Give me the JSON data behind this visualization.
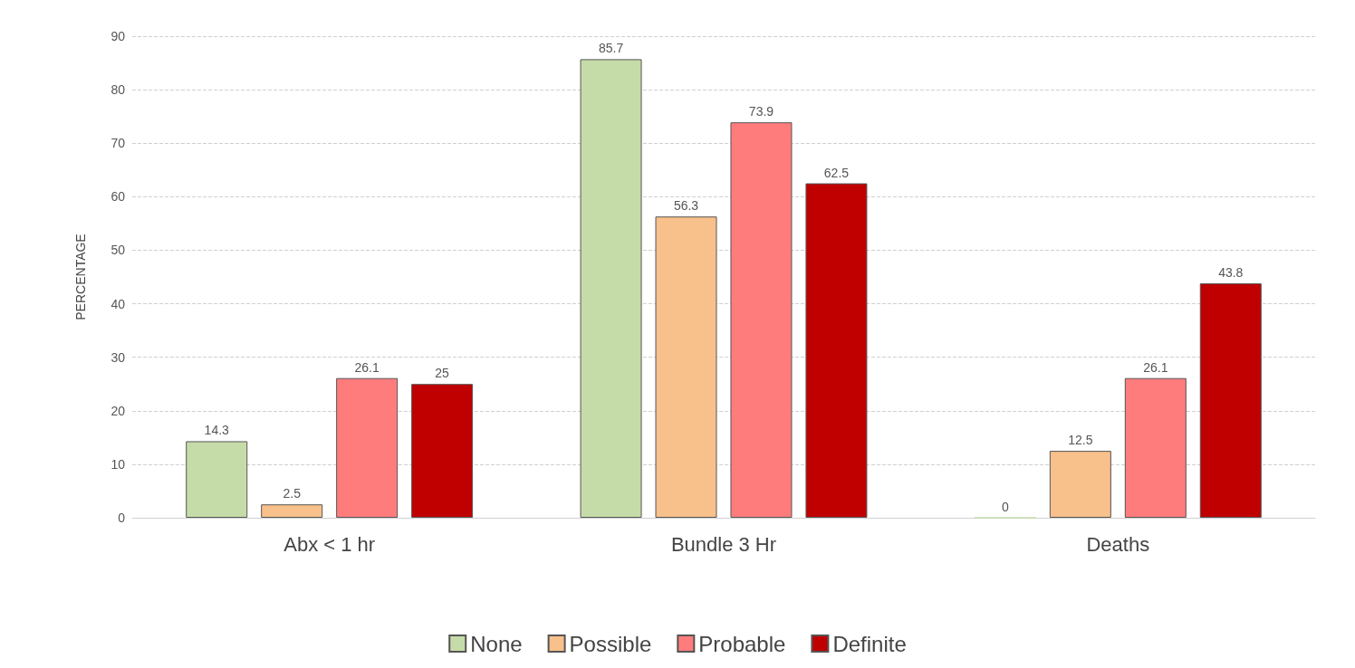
{
  "chart_data": {
    "type": "bar",
    "ylabel": "PERCENTAGE",
    "categories": [
      "Abx < 1 hr",
      "Bundle 3 Hr",
      "Deaths"
    ],
    "series": [
      {
        "name": "None",
        "color": "#c6dca8",
        "values": [
          14.3,
          85.7,
          0
        ]
      },
      {
        "name": "Possible",
        "color": "#f8c08b",
        "values": [
          2.5,
          56.3,
          12.5
        ]
      },
      {
        "name": "Probable",
        "color": "#ff7c7c",
        "values": [
          26.1,
          73.9,
          26.1
        ]
      },
      {
        "name": "Definite",
        "color": "#c00000",
        "values": [
          25,
          62.5,
          43.8
        ]
      }
    ],
    "ylim": [
      0,
      90
    ],
    "yticks": [
      0,
      10,
      20,
      30,
      40,
      50,
      60,
      70,
      80,
      90
    ],
    "grid": "y",
    "legend": "bottom",
    "data_labels": true
  }
}
